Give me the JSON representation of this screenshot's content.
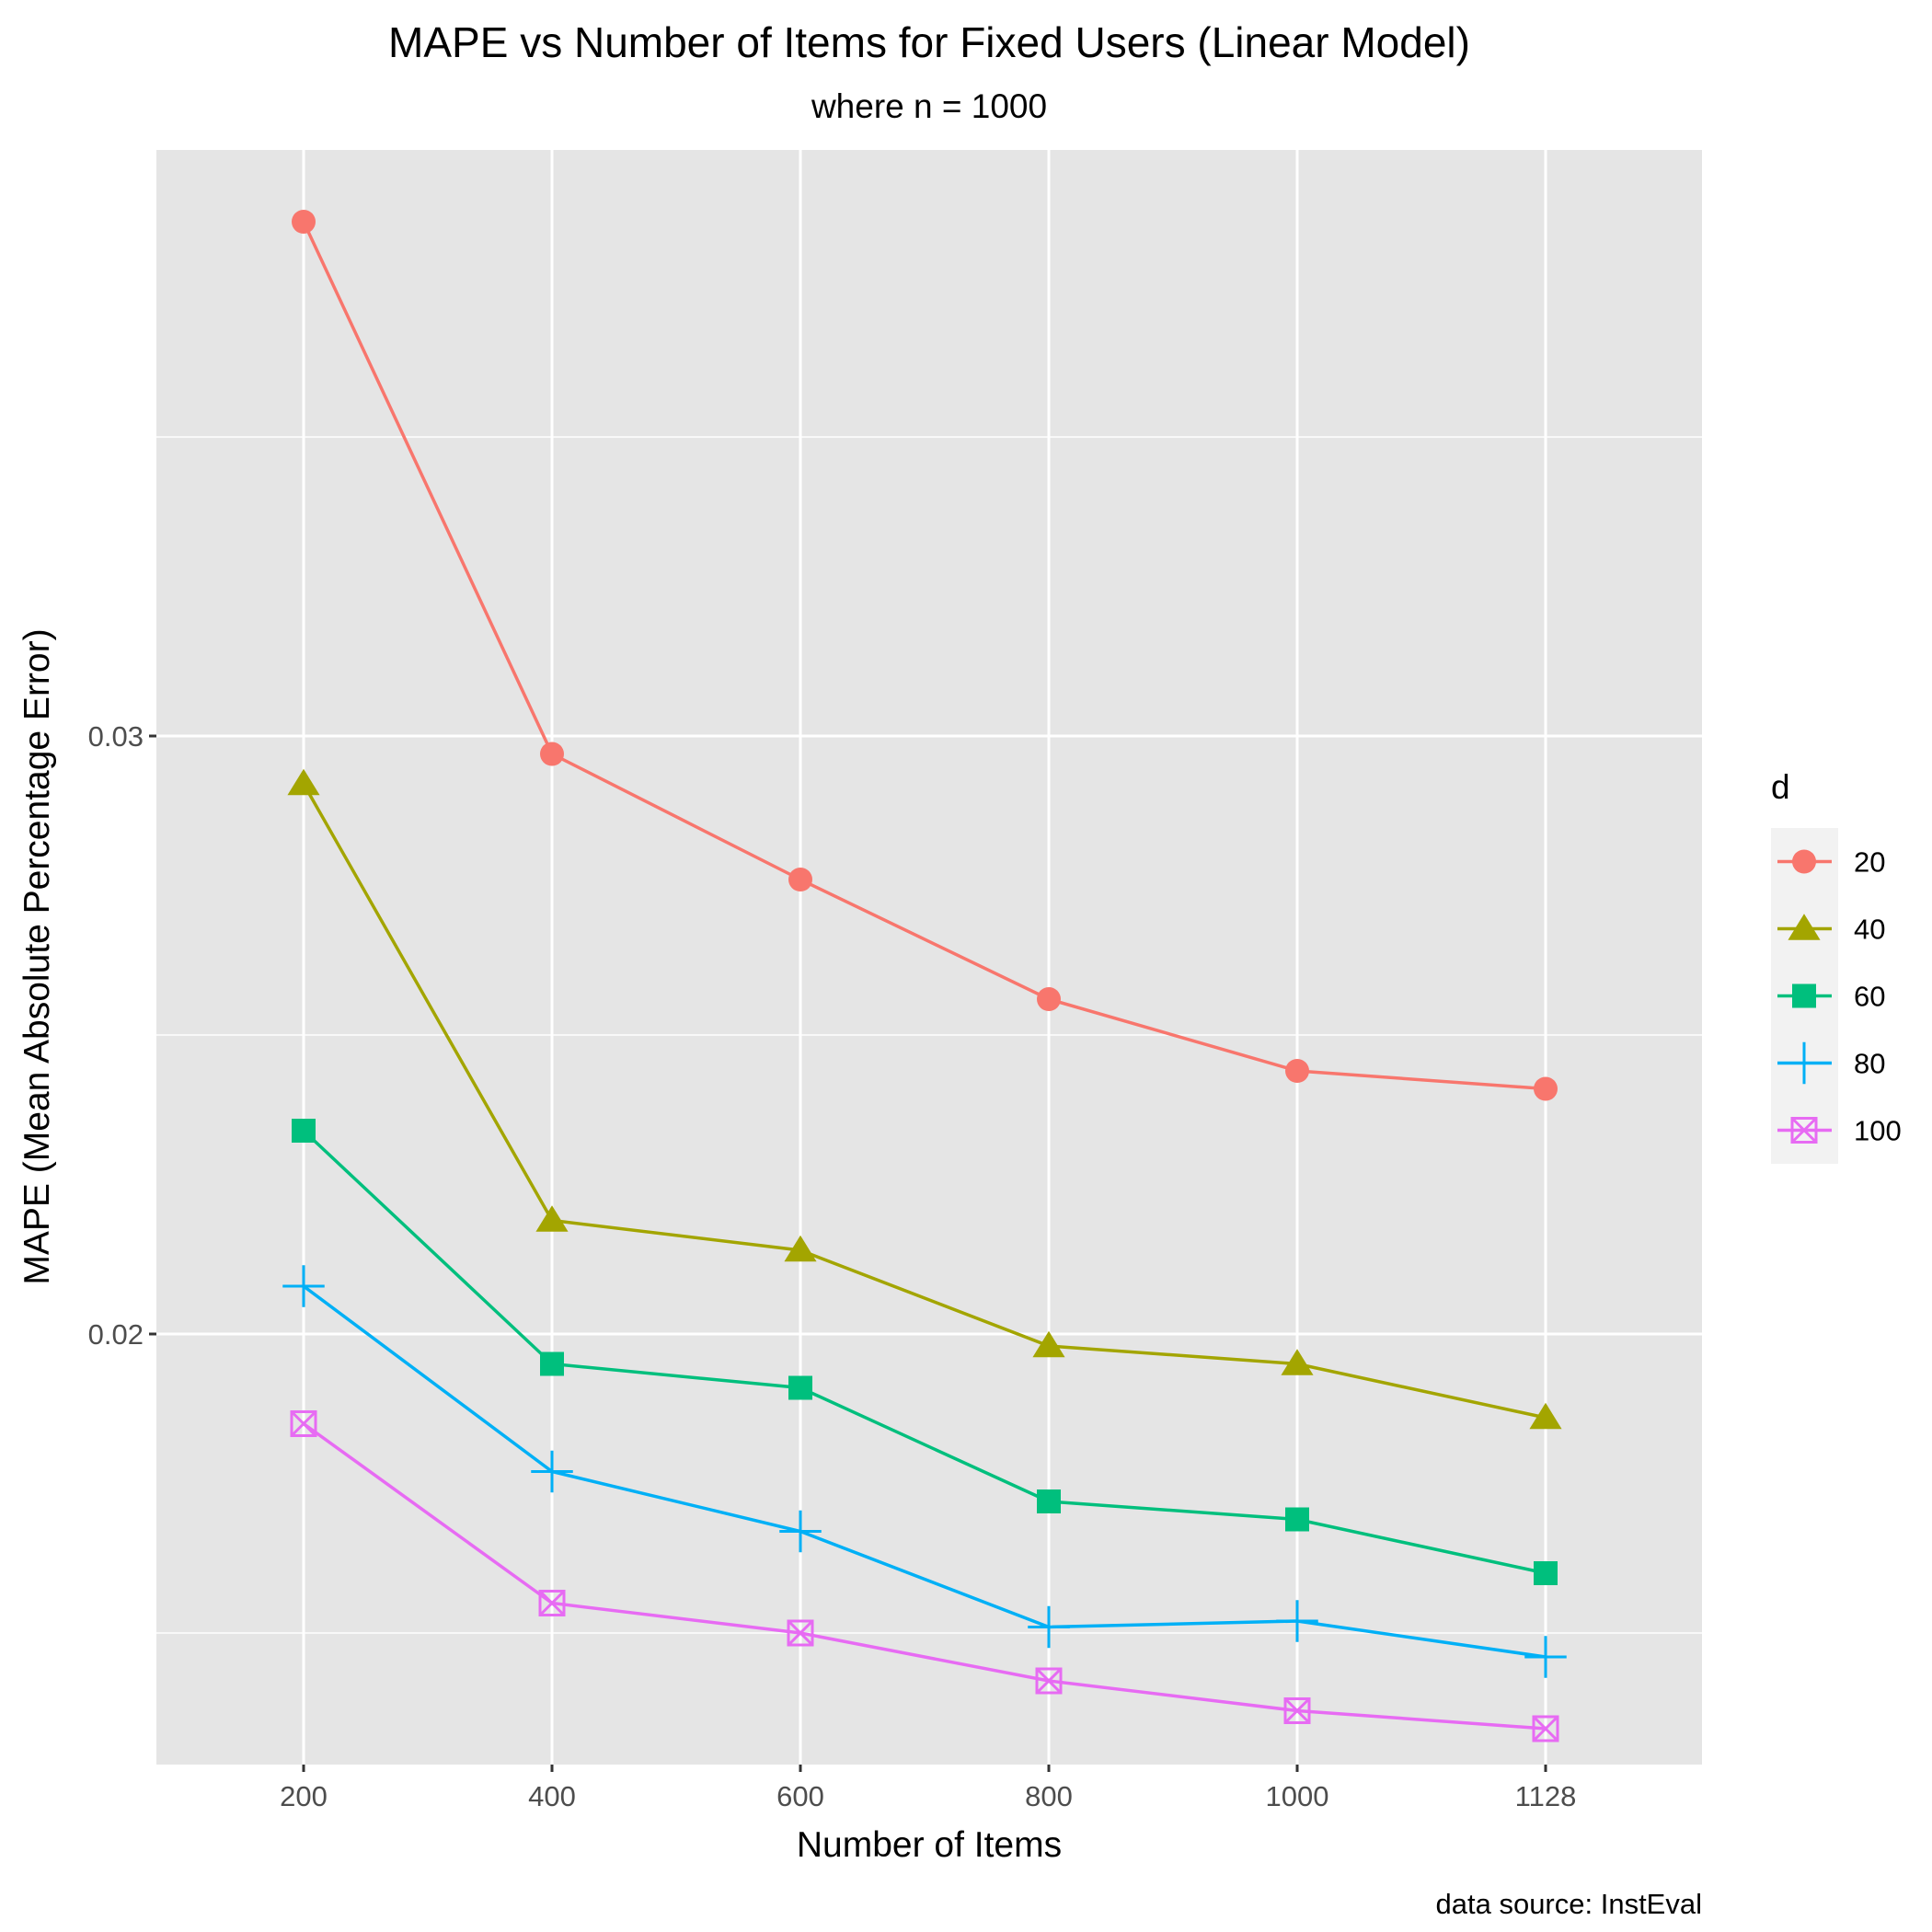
{
  "chart_data": {
    "type": "line",
    "title": "MAPE vs Number of Items for Fixed Users (Linear Model)",
    "subtitle": "where n = 1000",
    "xlabel": "Number of Items",
    "ylabel": "MAPE (Mean Absolute Percentage Error)",
    "caption": "data source: InstEval",
    "x_categories": [
      "200",
      "400",
      "600",
      "800",
      "1000",
      "1128"
    ],
    "y_ticks": [
      {
        "value": 0.02,
        "label": "0.02"
      },
      {
        "value": 0.03,
        "label": "0.03"
      }
    ],
    "y_minor_gridlines": [
      0.015,
      0.025,
      0.035
    ],
    "ylim": [
      0.0128,
      0.0398
    ],
    "grid": true,
    "panel_background": "#E5E5E5",
    "legend": {
      "title": "d",
      "position": "right"
    },
    "series": [
      {
        "name": "20",
        "shape": "circle",
        "color": "#F8766D",
        "values": [
          0.0386,
          0.0297,
          0.0276,
          0.0256,
          0.0244,
          0.0241
        ]
      },
      {
        "name": "40",
        "shape": "triangle",
        "color": "#A3A500",
        "values": [
          0.0292,
          0.0219,
          0.0214,
          0.0198,
          0.0195,
          0.0186
        ]
      },
      {
        "name": "60",
        "shape": "square",
        "color": "#00BF7D",
        "values": [
          0.0234,
          0.0195,
          0.0191,
          0.0172,
          0.0169,
          0.016
        ]
      },
      {
        "name": "80",
        "shape": "plus",
        "color": "#00B0F6",
        "values": [
          0.0208,
          0.0177,
          0.0167,
          0.0151,
          0.0152,
          0.0146
        ]
      },
      {
        "name": "100",
        "shape": "square-cross",
        "color": "#E76BF3",
        "values": [
          0.0185,
          0.0155,
          0.015,
          0.0142,
          0.0137,
          0.0134
        ]
      }
    ]
  }
}
